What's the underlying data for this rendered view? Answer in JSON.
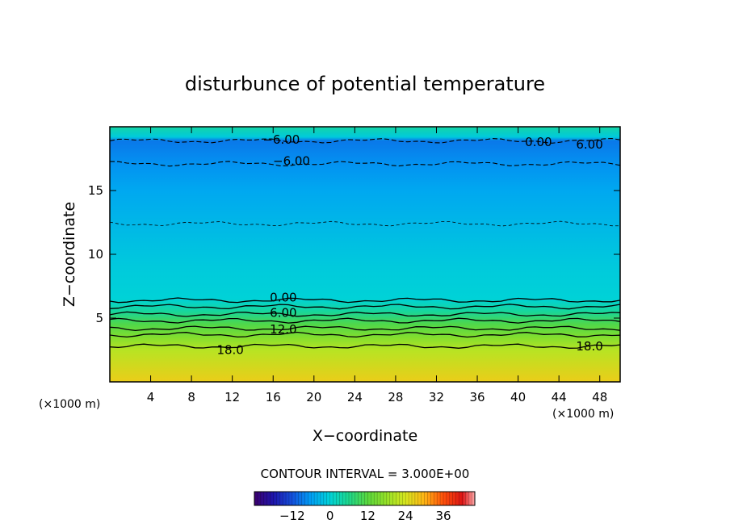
{
  "chart_data": {
    "type": "heatmap",
    "title": "disturbunce of potential temperature",
    "xlabel": "X−coordinate",
    "ylabel": "Z−coordinate",
    "x_unit_left": "(×1000 m)",
    "x_unit_right": "(×1000 m)",
    "xlim": [
      0,
      50
    ],
    "ylim": [
      0,
      20
    ],
    "x_ticks": [
      4,
      8,
      12,
      16,
      20,
      24,
      28,
      32,
      36,
      40,
      44,
      48
    ],
    "y_ticks": [
      5,
      10,
      15
    ],
    "contour_interval_text": "CONTOUR INTERVAL = 3.000E+00",
    "contour_labels": [
      {
        "text": "−6.00",
        "x": 16.8,
        "z": 19.0
      },
      {
        "text": "0.00",
        "x": 42.0,
        "z": 18.8
      },
      {
        "text": "6.00",
        "x": 47.0,
        "z": 18.6
      },
      {
        "text": "−6.00",
        "x": 17.8,
        "z": 17.3
      },
      {
        "text": "0.00",
        "x": 17.0,
        "z": 6.6
      },
      {
        "text": "6.00",
        "x": 17.0,
        "z": 5.4
      },
      {
        "text": "12.0",
        "x": 17.0,
        "z": 4.1
      },
      {
        "text": "18.0",
        "x": 11.8,
        "z": 2.5
      },
      {
        "text": "18.0",
        "x": 47.0,
        "z": 2.8
      }
    ],
    "contours": [
      {
        "value": -6,
        "z": 18.9,
        "style": "dashed"
      },
      {
        "value": -6,
        "z": 17.1,
        "style": "dashed"
      },
      {
        "value": -3,
        "z": 12.4,
        "style": "dashed-thin"
      },
      {
        "value": 0,
        "z": 6.4,
        "style": "solid"
      },
      {
        "value": 3,
        "z": 5.9,
        "style": "solid"
      },
      {
        "value": 6,
        "z": 5.3,
        "style": "solid"
      },
      {
        "value": 9,
        "z": 4.8,
        "style": "solid"
      },
      {
        "value": 12,
        "z": 4.2,
        "style": "solid"
      },
      {
        "value": 15,
        "z": 3.7,
        "style": "solid"
      },
      {
        "value": 18,
        "z": 2.8,
        "style": "solid"
      }
    ],
    "field_profile": [
      {
        "z": 0,
        "value": 27
      },
      {
        "z": 2.5,
        "value": 21
      },
      {
        "z": 3.5,
        "value": 16
      },
      {
        "z": 4.5,
        "value": 11
      },
      {
        "z": 5.5,
        "value": 5
      },
      {
        "z": 6.5,
        "value": 0
      },
      {
        "z": 9,
        "value": -1
      },
      {
        "z": 12,
        "value": -3
      },
      {
        "z": 15,
        "value": -5
      },
      {
        "z": 17,
        "value": -7
      },
      {
        "z": 18.9,
        "value": -9
      },
      {
        "z": 19.2,
        "value": -1
      },
      {
        "z": 20,
        "value": 4
      }
    ],
    "colorbar": {
      "min": -24,
      "max": 46,
      "tick_values": [
        -12,
        0,
        12,
        24,
        36
      ],
      "tick_labels": [
        "−12",
        "0",
        "12",
        "24",
        "36"
      ]
    }
  }
}
